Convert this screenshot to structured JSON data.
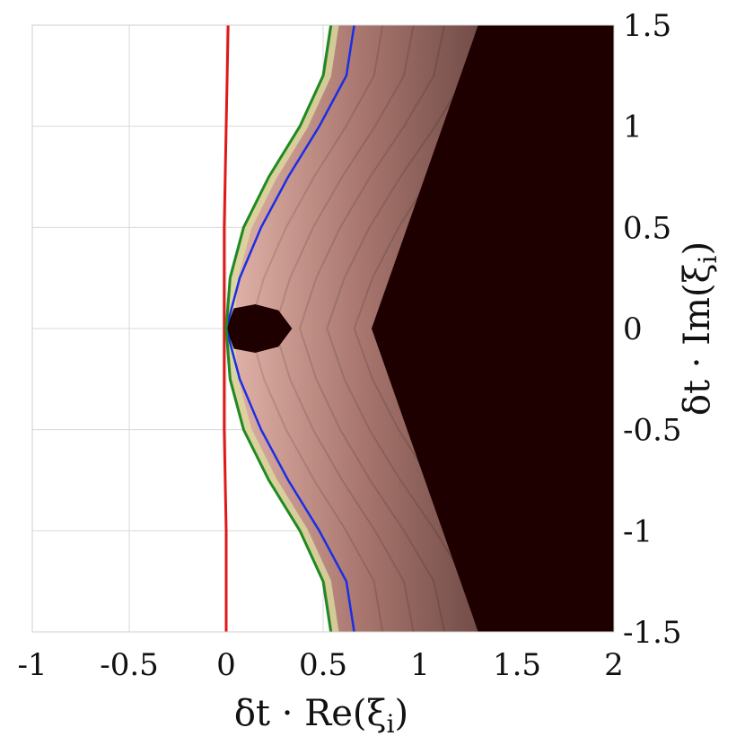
{
  "chart_data": {
    "type": "contour",
    "xlabel": "δt · Re(ξ",
    "xlabel_sub": "i",
    "xlabel_close": ")",
    "ylabel": "δt · Im(ξ",
    "ylabel_sub": "i",
    "ylabel_close": ")",
    "xlim": [
      -1,
      2
    ],
    "ylim": [
      -1.5,
      1.5
    ],
    "grid": true,
    "y_axis_side": "right",
    "x_ticks": [
      {
        "value": -1,
        "label": "-1"
      },
      {
        "value": -0.5,
        "label": "-0.5"
      },
      {
        "value": 0,
        "label": "0"
      },
      {
        "value": 0.5,
        "label": "0.5"
      },
      {
        "value": 1,
        "label": "1"
      },
      {
        "value": 1.5,
        "label": "1.5"
      },
      {
        "value": 2,
        "label": "2"
      }
    ],
    "y_ticks": [
      {
        "value": 1.5,
        "label": "1.5"
      },
      {
        "value": 1,
        "label": "1"
      },
      {
        "value": 0.5,
        "label": "0.5"
      },
      {
        "value": 0,
        "label": "0"
      },
      {
        "value": -0.5,
        "label": "-0.5"
      },
      {
        "value": -1,
        "label": "-1"
      },
      {
        "value": -1.5,
        "label": "-1.5"
      }
    ],
    "colors": {
      "red_curve": "#e01818",
      "blue_curve": "#1a2ee6",
      "green_curve": "#1f8a1f",
      "dark_region": "#1e0000",
      "mid_region": "#2e1a1a",
      "light_contour": "#d2a49c",
      "highlight_contour": "#dcdca0"
    },
    "series": [
      {
        "color": "#e01818",
        "points": [
          [
            0.0,
            -1.5
          ],
          [
            0.0,
            -1.0
          ],
          [
            -0.01,
            -0.5
          ],
          [
            -0.01,
            0.0
          ],
          [
            -0.01,
            0.5
          ],
          [
            0.0,
            1.0
          ],
          [
            0.01,
            1.5
          ]
        ]
      },
      {
        "color": "#1a2ee6",
        "points": [
          [
            0.66,
            -1.5
          ],
          [
            0.62,
            -1.25
          ],
          [
            0.48,
            -1.0
          ],
          [
            0.32,
            -0.75
          ],
          [
            0.18,
            -0.5
          ],
          [
            0.07,
            -0.25
          ],
          [
            0.0,
            0.0
          ],
          [
            0.07,
            0.25
          ],
          [
            0.18,
            0.5
          ],
          [
            0.32,
            0.75
          ],
          [
            0.48,
            1.0
          ],
          [
            0.62,
            1.25
          ],
          [
            0.66,
            1.5
          ]
        ]
      },
      {
        "color": "#1f8a1f",
        "points": [
          [
            0.54,
            -1.5
          ],
          [
            0.5,
            -1.25
          ],
          [
            0.38,
            -1.0
          ],
          [
            0.22,
            -0.75
          ],
          [
            0.09,
            -0.5
          ],
          [
            0.02,
            -0.25
          ],
          [
            0.0,
            0.0
          ],
          [
            0.02,
            0.25
          ],
          [
            0.09,
            0.5
          ],
          [
            0.22,
            0.75
          ],
          [
            0.38,
            1.0
          ],
          [
            0.5,
            1.25
          ],
          [
            0.54,
            1.5
          ]
        ]
      }
    ],
    "regions": [
      {
        "name": "outer-dark",
        "color": "#1e0000",
        "points": [
          [
            2.0,
            1.5
          ],
          [
            1.3,
            1.5
          ],
          [
            0.75,
            0.0
          ],
          [
            1.3,
            -1.5
          ],
          [
            2.0,
            -1.5
          ]
        ]
      },
      {
        "name": "inner-lobe",
        "color": "#1e0000",
        "points": [
          [
            0.0,
            0.0
          ],
          [
            0.04,
            0.1
          ],
          [
            0.15,
            0.12
          ],
          [
            0.27,
            0.09
          ],
          [
            0.34,
            0.0
          ],
          [
            0.27,
            -0.09
          ],
          [
            0.15,
            -0.12
          ],
          [
            0.04,
            -0.1
          ]
        ]
      }
    ]
  }
}
